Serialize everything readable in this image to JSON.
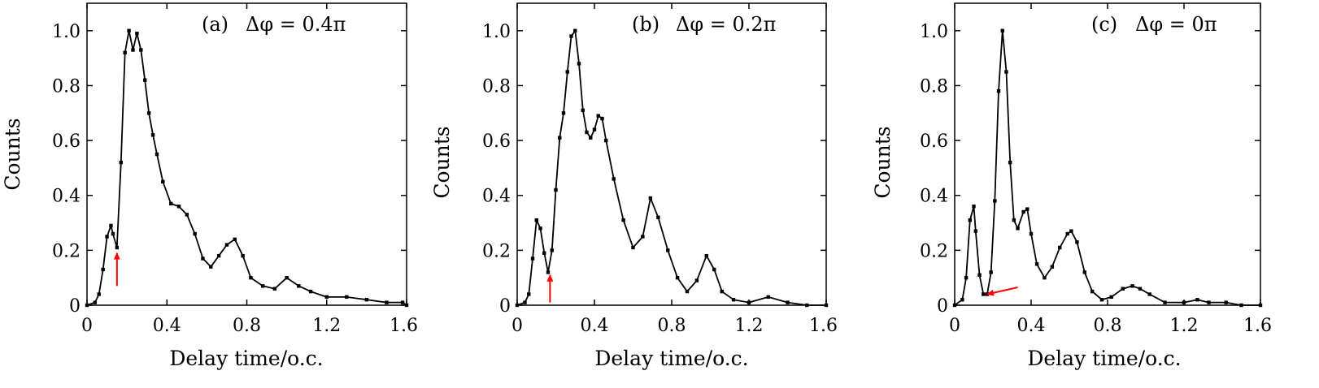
{
  "figure": {
    "panels": [
      {
        "id": "a",
        "label": "(a)",
        "equation": "Δφ = 0.4π"
      },
      {
        "id": "b",
        "label": "(b)",
        "equation": "Δφ = 0.2π"
      },
      {
        "id": "c",
        "label": "(c)",
        "equation": "Δφ = 0π"
      }
    ],
    "arrow_color": "#ff0000",
    "line_color": "#000000"
  },
  "chart_data": [
    {
      "type": "line",
      "title": "(a) Δφ = 0.4π",
      "xlabel": "Delay time/o.c.",
      "ylabel": "Counts",
      "xlim": [
        0,
        1.6
      ],
      "ylim": [
        0,
        1.1
      ],
      "xticks": [
        0,
        0.4,
        0.8,
        1.2,
        1.6
      ],
      "yticks": [
        0,
        0.2,
        0.4,
        0.6,
        0.8,
        1.0
      ],
      "xticklabels": [
        "0",
        "0.4",
        "0.8",
        "1.2",
        "1.6"
      ],
      "yticklabels": [
        "0",
        "0.2",
        "0.4",
        "0.6",
        "0.8",
        "1.0"
      ],
      "grid": false,
      "arrow": {
        "x": 0.15,
        "y_tip": 0.19,
        "y_tail": 0.07,
        "dx": 0
      },
      "series": [
        {
          "x": [
            0.0,
            0.04,
            0.06,
            0.08,
            0.1,
            0.12,
            0.13,
            0.15,
            0.17,
            0.19,
            0.21,
            0.23,
            0.25,
            0.27,
            0.29,
            0.31,
            0.33,
            0.35,
            0.38,
            0.42,
            0.46,
            0.5,
            0.54,
            0.58,
            0.62,
            0.66,
            0.7,
            0.74,
            0.78,
            0.82,
            0.88,
            0.94,
            1.0,
            1.06,
            1.12,
            1.2,
            1.3,
            1.4,
            1.5,
            1.58,
            1.6
          ],
          "y": [
            0.0,
            0.01,
            0.04,
            0.13,
            0.25,
            0.29,
            0.26,
            0.21,
            0.52,
            0.92,
            1.0,
            0.93,
            0.99,
            0.93,
            0.82,
            0.7,
            0.62,
            0.55,
            0.45,
            0.37,
            0.36,
            0.33,
            0.26,
            0.17,
            0.14,
            0.18,
            0.22,
            0.24,
            0.18,
            0.1,
            0.07,
            0.06,
            0.1,
            0.07,
            0.05,
            0.03,
            0.03,
            0.02,
            0.01,
            0.01,
            0.0
          ]
        }
      ]
    },
    {
      "type": "line",
      "title": "(b) Δφ = 0.2π",
      "xlabel": "Delay time/o.c.",
      "ylabel": "Counts",
      "xlim": [
        0,
        1.6
      ],
      "ylim": [
        0,
        1.1
      ],
      "xticks": [
        0,
        0.4,
        0.8,
        1.2,
        1.6
      ],
      "yticks": [
        0,
        0.2,
        0.4,
        0.6,
        0.8,
        1.0
      ],
      "xticklabels": [
        "0",
        "0.4",
        "0.8",
        "1.2",
        "1.6"
      ],
      "yticklabels": [
        "0",
        "0.2",
        "0.4",
        "0.6",
        "0.8",
        "1.0"
      ],
      "grid": false,
      "arrow": {
        "x": 0.17,
        "y_tip": 0.11,
        "y_tail": 0.01,
        "dx": 0
      },
      "series": [
        {
          "x": [
            0.0,
            0.04,
            0.06,
            0.08,
            0.1,
            0.12,
            0.14,
            0.16,
            0.18,
            0.2,
            0.22,
            0.24,
            0.26,
            0.28,
            0.3,
            0.32,
            0.34,
            0.36,
            0.38,
            0.4,
            0.42,
            0.44,
            0.46,
            0.5,
            0.55,
            0.6,
            0.65,
            0.69,
            0.73,
            0.78,
            0.83,
            0.88,
            0.93,
            0.98,
            1.02,
            1.06,
            1.12,
            1.2,
            1.3,
            1.4,
            1.5,
            1.6
          ],
          "y": [
            0.0,
            0.01,
            0.04,
            0.17,
            0.31,
            0.28,
            0.19,
            0.12,
            0.2,
            0.42,
            0.61,
            0.7,
            0.85,
            0.98,
            1.0,
            0.88,
            0.71,
            0.63,
            0.61,
            0.64,
            0.69,
            0.68,
            0.6,
            0.46,
            0.31,
            0.21,
            0.25,
            0.39,
            0.32,
            0.2,
            0.1,
            0.05,
            0.09,
            0.18,
            0.13,
            0.05,
            0.02,
            0.01,
            0.03,
            0.01,
            0.0,
            0.0
          ]
        }
      ]
    },
    {
      "type": "line",
      "title": "(c) Δφ = 0π",
      "xlabel": "Delay time/o.c.",
      "ylabel": "Counts",
      "xlim": [
        0,
        1.6
      ],
      "ylim": [
        0,
        1.1
      ],
      "xticks": [
        0,
        0.4,
        0.8,
        1.2,
        1.6
      ],
      "yticks": [
        0,
        0.2,
        0.4,
        0.6,
        0.8,
        1.0
      ],
      "xticklabels": [
        "0",
        "0.4",
        "0.8",
        "1.2",
        "1.6"
      ],
      "yticklabels": [
        "0",
        "0.2",
        "0.4",
        "0.6",
        "0.8",
        "1.0"
      ],
      "grid": false,
      "arrow": {
        "x": 0.17,
        "y_tip": 0.04,
        "y_tail": 0.065,
        "dx": 0.16
      },
      "series": [
        {
          "x": [
            0.0,
            0.04,
            0.06,
            0.08,
            0.1,
            0.11,
            0.13,
            0.15,
            0.17,
            0.19,
            0.21,
            0.23,
            0.25,
            0.27,
            0.29,
            0.31,
            0.33,
            0.36,
            0.38,
            0.4,
            0.43,
            0.47,
            0.51,
            0.55,
            0.59,
            0.61,
            0.64,
            0.68,
            0.72,
            0.77,
            0.82,
            0.88,
            0.93,
            0.97,
            1.02,
            1.1,
            1.2,
            1.27,
            1.33,
            1.42,
            1.5,
            1.6
          ],
          "y": [
            0.0,
            0.02,
            0.1,
            0.31,
            0.36,
            0.27,
            0.11,
            0.04,
            0.04,
            0.12,
            0.38,
            0.78,
            1.0,
            0.85,
            0.52,
            0.31,
            0.28,
            0.34,
            0.35,
            0.26,
            0.15,
            0.1,
            0.14,
            0.21,
            0.26,
            0.27,
            0.23,
            0.12,
            0.05,
            0.02,
            0.03,
            0.06,
            0.07,
            0.06,
            0.04,
            0.01,
            0.01,
            0.02,
            0.01,
            0.01,
            0.0,
            0.0
          ]
        }
      ]
    }
  ]
}
